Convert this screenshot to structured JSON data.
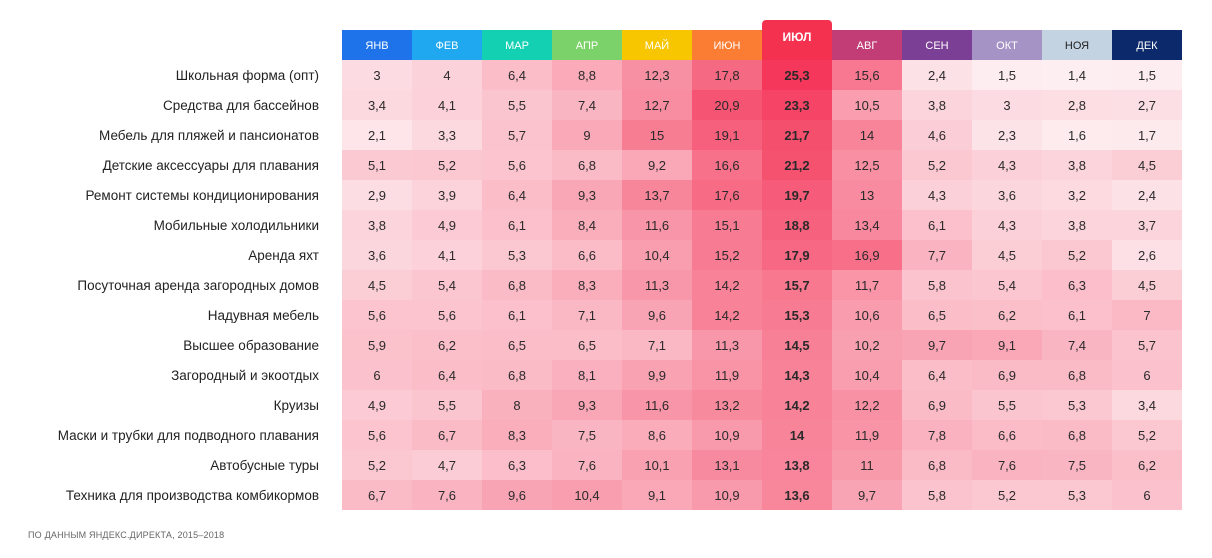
{
  "chart_data": {
    "type": "heatmap",
    "months": [
      {
        "label": "ЯНВ",
        "color": "#1e73ea"
      },
      {
        "label": "ФЕВ",
        "color": "#1fa8ef"
      },
      {
        "label": "МАР",
        "color": "#14d0b2"
      },
      {
        "label": "АПР",
        "color": "#7cd26a"
      },
      {
        "label": "МАЙ",
        "color": "#f8c600"
      },
      {
        "label": "ИЮН",
        "color": "#fa7d33"
      },
      {
        "label": "ИЮЛ",
        "color": "#f4324f"
      },
      {
        "label": "АВГ",
        "color": "#c23c76"
      },
      {
        "label": "СЕН",
        "color": "#7b3f96"
      },
      {
        "label": "ОКТ",
        "color": "#a693c6"
      },
      {
        "label": "НОЯ",
        "color": "#c3d3e1"
      },
      {
        "label": "ДЕК",
        "color": "#0c2a6b"
      }
    ],
    "highlight_month": "ИЮЛ",
    "rows": [
      {
        "label": "Школьная форма (опт)",
        "values": [
          "3",
          "4",
          "6,4",
          "8,8",
          "12,3",
          "17,8",
          "25,3",
          "15,6",
          "2,4",
          "1,5",
          "1,4",
          "1,5"
        ]
      },
      {
        "label": "Средства для бассейнов",
        "values": [
          "3,4",
          "4,1",
          "5,5",
          "7,4",
          "12,7",
          "20,9",
          "23,3",
          "10,5",
          "3,8",
          "3",
          "2,8",
          "2,7"
        ]
      },
      {
        "label": "Мебель для пляжей и пансионатов",
        "values": [
          "2,1",
          "3,3",
          "5,7",
          "9",
          "15",
          "19,1",
          "21,7",
          "14",
          "4,6",
          "2,3",
          "1,6",
          "1,7"
        ]
      },
      {
        "label": "Детские аксессуары для плавания",
        "values": [
          "5,1",
          "5,2",
          "5,6",
          "6,8",
          "9,2",
          "16,6",
          "21,2",
          "12,5",
          "5,2",
          "4,3",
          "3,8",
          "4,5"
        ]
      },
      {
        "label": "Ремонт системы кондиционирования",
        "values": [
          "2,9",
          "3,9",
          "6,4",
          "9,3",
          "13,7",
          "17,6",
          "19,7",
          "13",
          "4,3",
          "3,6",
          "3,2",
          "2,4"
        ]
      },
      {
        "label": "Мобильные холодильники",
        "values": [
          "3,8",
          "4,9",
          "6,1",
          "8,4",
          "11,6",
          "15,1",
          "18,8",
          "13,4",
          "6,1",
          "4,3",
          "3,8",
          "3,7"
        ]
      },
      {
        "label": "Аренда яхт",
        "values": [
          "3,6",
          "4,1",
          "5,3",
          "6,6",
          "10,4",
          "15,2",
          "17,9",
          "16,9",
          "7,7",
          "4,5",
          "5,2",
          "2,6"
        ]
      },
      {
        "label": "Посуточная аренда загородных домов",
        "values": [
          "4,5",
          "5,4",
          "6,8",
          "8,3",
          "11,3",
          "14,2",
          "15,7",
          "11,7",
          "5,8",
          "5,4",
          "6,3",
          "4,5"
        ]
      },
      {
        "label": "Надувная мебель",
        "values": [
          "5,6",
          "5,6",
          "6,1",
          "7,1",
          "9,6",
          "14,2",
          "15,3",
          "10,6",
          "6,5",
          "6,2",
          "6,1",
          "7"
        ]
      },
      {
        "label": "Высшее образование",
        "values": [
          "5,9",
          "6,2",
          "6,5",
          "6,5",
          "7,1",
          "11,3",
          "14,5",
          "10,2",
          "9,7",
          "9,1",
          "7,4",
          "5,7"
        ]
      },
      {
        "label": "Загородный и экоотдых",
        "values": [
          "6",
          "6,4",
          "6,8",
          "8,1",
          "9,9",
          "11,9",
          "14,3",
          "10,4",
          "6,4",
          "6,9",
          "6,8",
          "6"
        ]
      },
      {
        "label": "Круизы",
        "values": [
          "4,9",
          "5,5",
          "8",
          "9,3",
          "11,6",
          "13,2",
          "14,2",
          "12,2",
          "6,9",
          "5,5",
          "5,3",
          "3,4"
        ]
      },
      {
        "label": "Маски и трубки для подводного плавания",
        "values": [
          "5,6",
          "6,7",
          "8,3",
          "7,5",
          "8,6",
          "10,9",
          "14",
          "11,9",
          "7,8",
          "6,6",
          "6,8",
          "5,2"
        ]
      },
      {
        "label": "Автобусные туры",
        "values": [
          "5,2",
          "4,7",
          "6,3",
          "7,6",
          "10,1",
          "13,1",
          "13,8",
          "11",
          "6,8",
          "7,6",
          "7,5",
          "6,2"
        ]
      },
      {
        "label": "Техника для производства комбикормов",
        "values": [
          "6,7",
          "7,6",
          "9,6",
          "10,4",
          "9,1",
          "10,9",
          "13,6",
          "9,7",
          "5,8",
          "5,2",
          "5,3",
          "6"
        ]
      }
    ],
    "scale": {
      "min_color": "#fdeef1",
      "max_color": "#f4375a"
    }
  },
  "footnote": "ПО ДАННЫМ ЯНДЕКС.ДИРЕКТА, 2015–2018"
}
